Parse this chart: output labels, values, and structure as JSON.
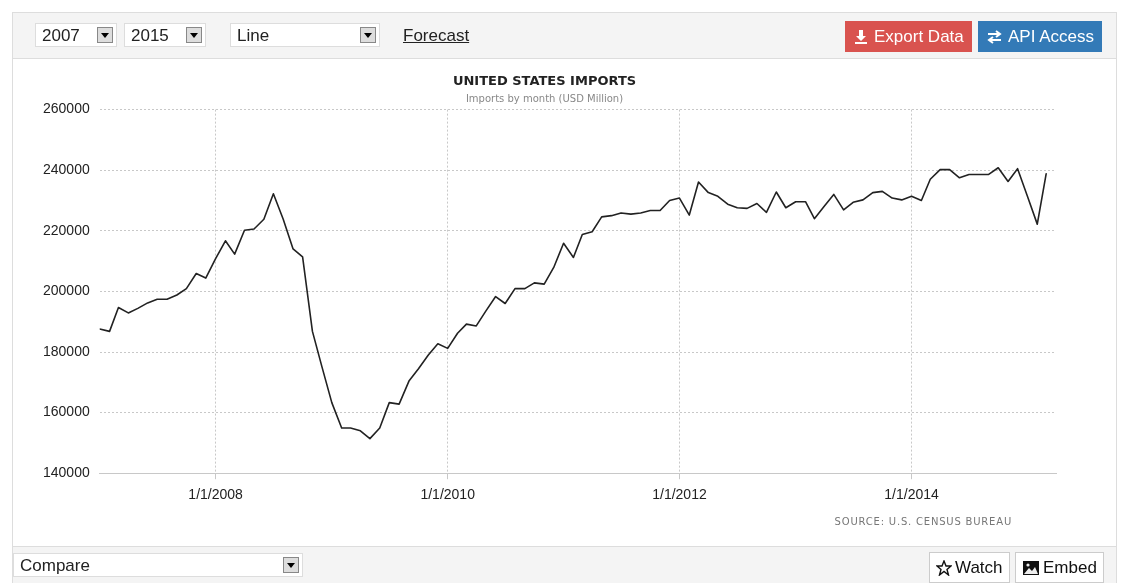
{
  "chart_data": {
    "type": "line",
    "title": "UNITED STATES IMPORTS",
    "subtitle": "Imports by month (USD Million)",
    "annotations": [
      "2007",
      "2015",
      "Line",
      "Forecast",
      "Export Data",
      "API Access",
      "Compare",
      "Watch",
      "Embed",
      "SOURCE: U.S. CENSUS BUREAU"
    ],
    "x": [
      "2007-01",
      "2007-02",
      "2007-03",
      "2007-04",
      "2007-05",
      "2007-06",
      "2007-07",
      "2007-08",
      "2007-09",
      "2007-10",
      "2007-11",
      "2007-12",
      "2008-01",
      "2008-02",
      "2008-03",
      "2008-04",
      "2008-05",
      "2008-06",
      "2008-07",
      "2008-08",
      "2008-09",
      "2008-10",
      "2008-11",
      "2008-12",
      "2009-01",
      "2009-02",
      "2009-03",
      "2009-04",
      "2009-05",
      "2009-06",
      "2009-07",
      "2009-08",
      "2009-09",
      "2009-10",
      "2009-11",
      "2009-12",
      "2010-01",
      "2010-02",
      "2010-03",
      "2010-04",
      "2010-05",
      "2010-06",
      "2010-07",
      "2010-08",
      "2010-09",
      "2010-10",
      "2010-11",
      "2010-12",
      "2011-01",
      "2011-02",
      "2011-03",
      "2011-04",
      "2011-05",
      "2011-06",
      "2011-07",
      "2011-08",
      "2011-09",
      "2011-10",
      "2011-11",
      "2011-12",
      "2012-01",
      "2012-02",
      "2012-03",
      "2012-04",
      "2012-05",
      "2012-06",
      "2012-07",
      "2012-08",
      "2012-09",
      "2012-10",
      "2012-11",
      "2012-12",
      "2013-01",
      "2013-02",
      "2013-03",
      "2013-04",
      "2013-05",
      "2013-06",
      "2013-07",
      "2013-08",
      "2013-09",
      "2013-10",
      "2013-11",
      "2013-12",
      "2014-01",
      "2014-02",
      "2014-03",
      "2014-04",
      "2014-05",
      "2014-06",
      "2014-07",
      "2014-08",
      "2014-09",
      "2014-10",
      "2014-11",
      "2014-12",
      "2015-01",
      "2015-02",
      "2015-03"
    ],
    "series": [
      {
        "color": "#222222",
        "values": [
          187600,
          186800,
          194700,
          192900,
          194400,
          196200,
          197400,
          197400,
          198800,
          200900,
          205900,
          204400,
          210800,
          216700,
          212300,
          220200,
          220600,
          223800,
          232200,
          223800,
          214000,
          211400,
          186800,
          175100,
          163300,
          154900,
          154900,
          154000,
          151400,
          154900,
          163300,
          162800,
          170400,
          174500,
          179000,
          182700,
          181200,
          186200,
          189200,
          188600,
          193500,
          198300,
          196000,
          200900,
          200900,
          202800,
          202400,
          207900,
          215900,
          211200,
          218800,
          219700,
          224600,
          225000,
          225900,
          225500,
          225900,
          226700,
          226700,
          230000,
          230800,
          225200,
          236100,
          232600,
          231400,
          228800,
          227600,
          227400,
          229000,
          226100,
          232800,
          227600,
          229600,
          229600,
          224000,
          228100,
          232000,
          226900,
          229400,
          230200,
          232600,
          233000,
          230800,
          230200,
          231400,
          230000,
          237000,
          240200,
          240200,
          237500,
          238600,
          238600,
          238600,
          240800,
          236300,
          240500,
          231400,
          222200,
          238800
        ]
      }
    ],
    "xlim": [
      "2007-01",
      "2015-04"
    ],
    "xticks": [
      {
        "value": "2008-01-01",
        "label": "1/1/2008"
      },
      {
        "value": "2010-01-01",
        "label": "1/1/2010"
      },
      {
        "value": "2012-01-01",
        "label": "1/1/2012"
      },
      {
        "value": "2014-01-01",
        "label": "1/1/2014"
      }
    ],
    "ylim": [
      140000,
      260000
    ],
    "yticks": [
      140000,
      160000,
      180000,
      200000,
      220000,
      240000,
      260000
    ],
    "grid": true,
    "legend": false
  }
}
